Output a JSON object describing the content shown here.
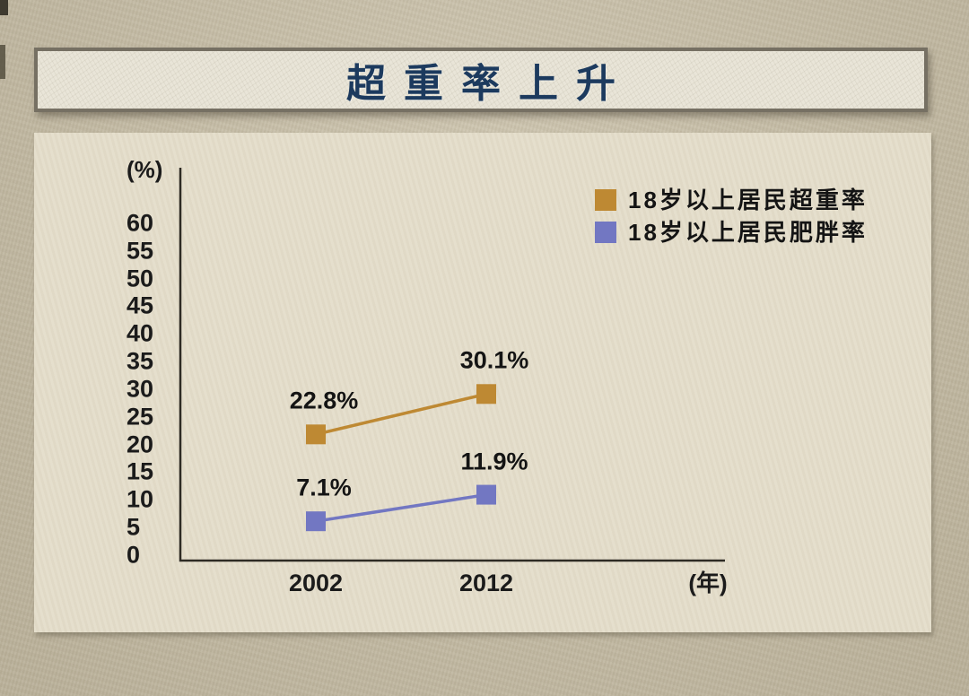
{
  "banner": {
    "title": "超重率上升"
  },
  "colors": {
    "title": "#1C3A5E",
    "axis": "#2E2B24",
    "text": "#141414",
    "series_overweight": "#BE8933",
    "series_obesity": "#7277C2"
  },
  "chart_data": {
    "type": "line",
    "title": "超重率上升",
    "x_categories": [
      "2002",
      "2012"
    ],
    "x_axis_unit_label": "(年)",
    "y_axis_unit_label": "(%)",
    "y_ticks": [
      0,
      5,
      10,
      15,
      20,
      25,
      30,
      35,
      40,
      45,
      50,
      55,
      60
    ],
    "ylim": [
      0,
      65
    ],
    "grid": false,
    "marker": "square",
    "legend_position": "top-right",
    "series": [
      {
        "name": "18岁以上居民超重率",
        "color": "#BE8933",
        "values": [
          22.8,
          30.1
        ],
        "point_labels": [
          "22.8%",
          "30.1%"
        ]
      },
      {
        "name": "18岁以上居民肥胖率",
        "color": "#7277C2",
        "values": [
          7.1,
          11.9
        ],
        "point_labels": [
          "7.1%",
          "11.9%"
        ]
      }
    ]
  }
}
